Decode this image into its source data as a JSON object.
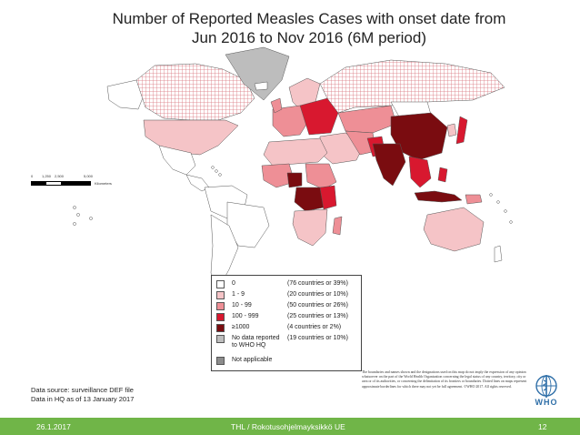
{
  "title": {
    "line1": "Number of Reported Measles Cases with onset date from",
    "line2": "Jun 2016 to Nov 2016 (6M period)"
  },
  "colors": {
    "c0": "#ffffff",
    "c1_9": "#f5c4c7",
    "c10_99": "#ee8f96",
    "c100_999": "#d8182f",
    "c1000": "#7a0c10",
    "nodata": "#bdbdbd",
    "na": "#8c8c8c",
    "accent": "#70b548"
  },
  "scale": {
    "ticks": [
      "0",
      "1,250",
      "2,500",
      "5,000"
    ],
    "unit": "Kilometers"
  },
  "legend": {
    "items": [
      {
        "label": "0",
        "count": "(76 countries or 39%)"
      },
      {
        "label": "1 - 9",
        "count": "(20 countries or 10%)"
      },
      {
        "label": "10 - 99",
        "count": "(50 countries or 26%)"
      },
      {
        "label": "100 - 999",
        "count": "(25 countries or 13%)"
      },
      {
        "label": "≥1000",
        "count": "(4 countries or 2%)"
      },
      {
        "label": "No data reported to WHO HQ",
        "count": "(19 countries or 10%)"
      },
      {
        "label": "Not applicable",
        "count": ""
      }
    ]
  },
  "source": {
    "line1": "Data source: surveillance DEF file",
    "line2": "Data in HQ as of 13 January 2017"
  },
  "disclaimer": "The boundaries and names shown and the designations used on this map do not imply the expression of any opinion whatsoever on the part of the World Health Organization concerning the legal status of any country, territory, city or area or of its authorities, or concerning the delimitation of its frontiers or boundaries. Dotted lines on maps represent approximate borderlines for which there may not yet be full agreement. ©WHO 2017. All rights reserved.",
  "who_logo": "WHO",
  "footer": {
    "date": "26.1.2017",
    "org": "THL / Rokotusohjelmayksikkö UE",
    "page": "12"
  }
}
